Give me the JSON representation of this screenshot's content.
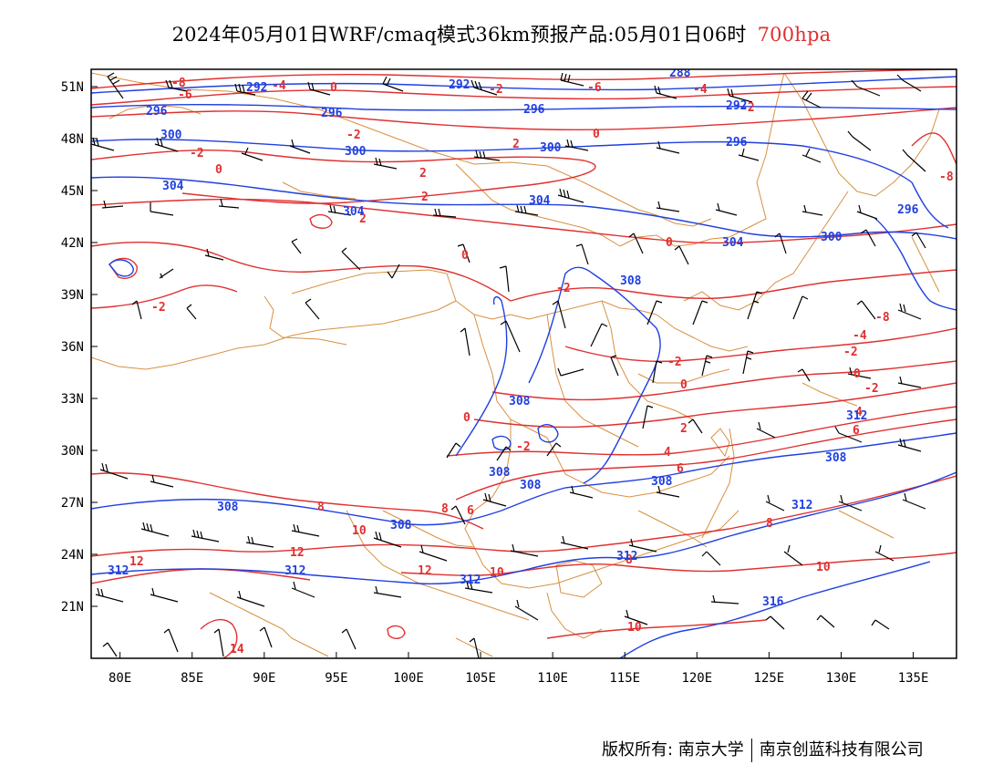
{
  "title": {
    "main": "2024年05月01日WRF/cmaq模式36km预报产品:05月01日06时",
    "level": "700hpa",
    "level_color": "#e03030"
  },
  "map": {
    "lon_range": [
      78,
      138
    ],
    "lat_range": [
      18,
      52
    ],
    "lon_ticks": [
      "80E",
      "85E",
      "90E",
      "95E",
      "100E",
      "105E",
      "110E",
      "115E",
      "120E",
      "125E",
      "130E",
      "135E"
    ],
    "lat_ticks": [
      "51N",
      "48N",
      "45N",
      "42N",
      "39N",
      "36N",
      "33N",
      "30N",
      "27N",
      "24N",
      "21N"
    ],
    "layers": {
      "temperature_contours": {
        "color": "#e03030",
        "labels": [
          "-8",
          "-6",
          "-4",
          "-2",
          "0",
          "2",
          "4",
          "6",
          "8",
          "10",
          "12",
          "14"
        ]
      },
      "potential_temperature_contours": {
        "color": "#2040e0",
        "labels": [
          "292",
          "296",
          "300",
          "304",
          "308",
          "312",
          "316"
        ]
      },
      "boundaries": {
        "color": "#d89040"
      },
      "wind_barbs": {
        "color": "#000000"
      }
    }
  },
  "footer": {
    "copyright": "版权所有: 南京大学",
    "company": "南京创蓝科技有限公司"
  }
}
